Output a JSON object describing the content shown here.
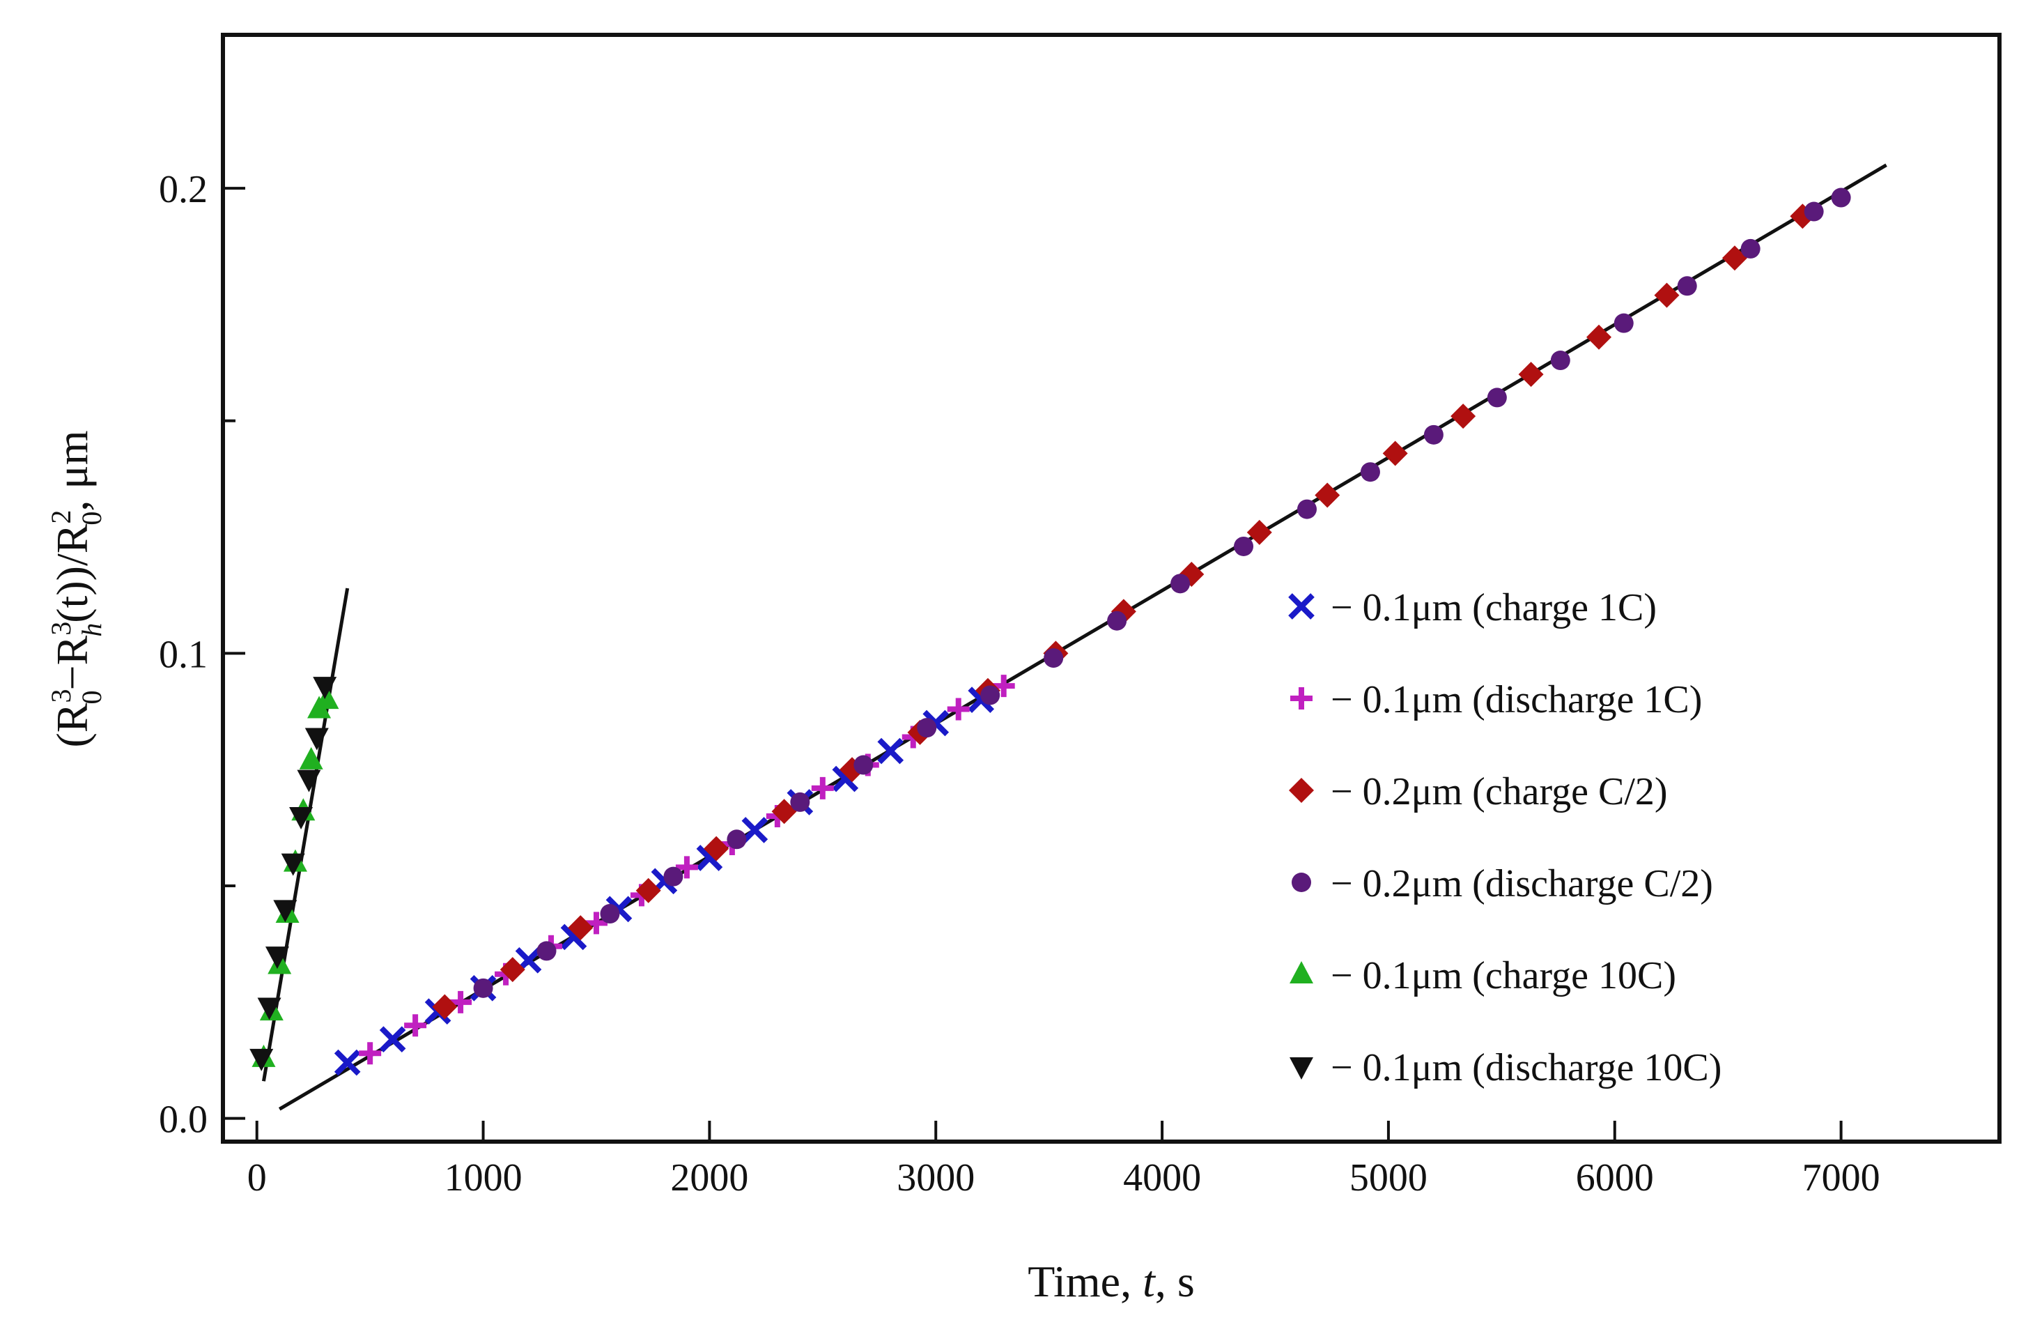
{
  "chart_data": {
    "type": "scatter",
    "title": "",
    "xlabel_parts": [
      "Time, ",
      "t",
      ", s"
    ],
    "ylabel_parts": [
      "(R",
      "3",
      "0",
      "−R",
      "3",
      "h",
      "(t))/R",
      "2",
      "0",
      ",  μm"
    ],
    "xlim": [
      -150,
      7700
    ],
    "ylim": [
      -0.005,
      0.233
    ],
    "x_ticks": [
      0,
      1000,
      2000,
      3000,
      4000,
      5000,
      6000,
      7000
    ],
    "x_tick_labels": [
      "0",
      "1000",
      "2000",
      "3000",
      "4000",
      "5000",
      "6000",
      "7000"
    ],
    "y_ticks": [
      0.0,
      0.1,
      0.2
    ],
    "y_tick_labels": [
      "0.0",
      "0.1",
      "0.2"
    ],
    "y_minor_ticks": [
      0.05,
      0.15
    ],
    "grid": false,
    "legend_position": "right-center",
    "series": [
      {
        "name": "− 0.1μm (charge 1C)",
        "marker": "x",
        "color": "#1a1ac8",
        "x": [
          400,
          600,
          800,
          1000,
          1200,
          1400,
          1600,
          1800,
          2000,
          2200,
          2400,
          2600,
          2800,
          3000,
          3200
        ],
        "y": [
          0.012,
          0.017,
          0.023,
          0.028,
          0.034,
          0.039,
          0.045,
          0.051,
          0.056,
          0.062,
          0.068,
          0.073,
          0.079,
          0.085,
          0.09
        ]
      },
      {
        "name": "− 0.1μm (discharge 1C)",
        "marker": "plus",
        "color": "#c020c0",
        "x": [
          500,
          700,
          900,
          1100,
          1300,
          1500,
          1700,
          1900,
          2100,
          2300,
          2500,
          2700,
          2900,
          3100,
          3300
        ],
        "y": [
          0.014,
          0.02,
          0.025,
          0.031,
          0.037,
          0.042,
          0.048,
          0.054,
          0.059,
          0.065,
          0.071,
          0.076,
          0.082,
          0.088,
          0.093
        ]
      },
      {
        "name": "− 0.2μm (charge C/2)",
        "marker": "diamond",
        "color": "#b01010",
        "x": [
          830,
          1130,
          1430,
          1730,
          2030,
          2330,
          2630,
          2930,
          3230,
          3530,
          3830,
          4130,
          4430,
          4730,
          5030,
          5330,
          5630,
          5930,
          6230,
          6530,
          6830
        ],
        "y": [
          0.024,
          0.032,
          0.041,
          0.049,
          0.058,
          0.066,
          0.075,
          0.083,
          0.092,
          0.1,
          0.109,
          0.117,
          0.126,
          0.134,
          0.143,
          0.151,
          0.16,
          0.168,
          0.177,
          0.185,
          0.194
        ]
      },
      {
        "name": "− 0.2μm (discharge C/2)",
        "marker": "circle",
        "color": "#5a1a7a",
        "x": [
          1000,
          1280,
          1560,
          1840,
          2120,
          2400,
          2680,
          2960,
          3240,
          3520,
          3800,
          4080,
          4360,
          4640,
          4920,
          5200,
          5480,
          5760,
          6040,
          6320,
          6600,
          6880,
          7000
        ],
        "y": [
          0.028,
          0.036,
          0.044,
          0.052,
          0.06,
          0.068,
          0.076,
          0.084,
          0.091,
          0.099,
          0.107,
          0.115,
          0.123,
          0.131,
          0.139,
          0.147,
          0.155,
          0.163,
          0.171,
          0.179,
          0.187,
          0.195,
          0.198
        ]
      },
      {
        "name": "− 0.1μm (charge 10C)",
        "marker": "triangle-up",
        "color": "#20b020",
        "x": [
          30,
          65,
          100,
          135,
          170,
          205,
          240,
          275,
          310
        ],
        "y": [
          0.013,
          0.023,
          0.033,
          0.044,
          0.055,
          0.066,
          0.077,
          0.088,
          0.09
        ]
      },
      {
        "name": "− 0.1μm (discharge 10C)",
        "marker": "triangle-down",
        "color": "#111111",
        "x": [
          20,
          55,
          90,
          125,
          160,
          195,
          230,
          265,
          300
        ],
        "y": [
          0.013,
          0.024,
          0.035,
          0.045,
          0.055,
          0.065,
          0.073,
          0.082,
          0.093
        ]
      }
    ],
    "fit_lines": [
      {
        "name": "fit-line-1",
        "x": [
          100,
          7200
        ],
        "y": [
          0.002,
          0.205
        ]
      },
      {
        "name": "fit-line-2",
        "x": [
          30,
          400
        ],
        "y": [
          0.008,
          0.114
        ]
      }
    ]
  }
}
